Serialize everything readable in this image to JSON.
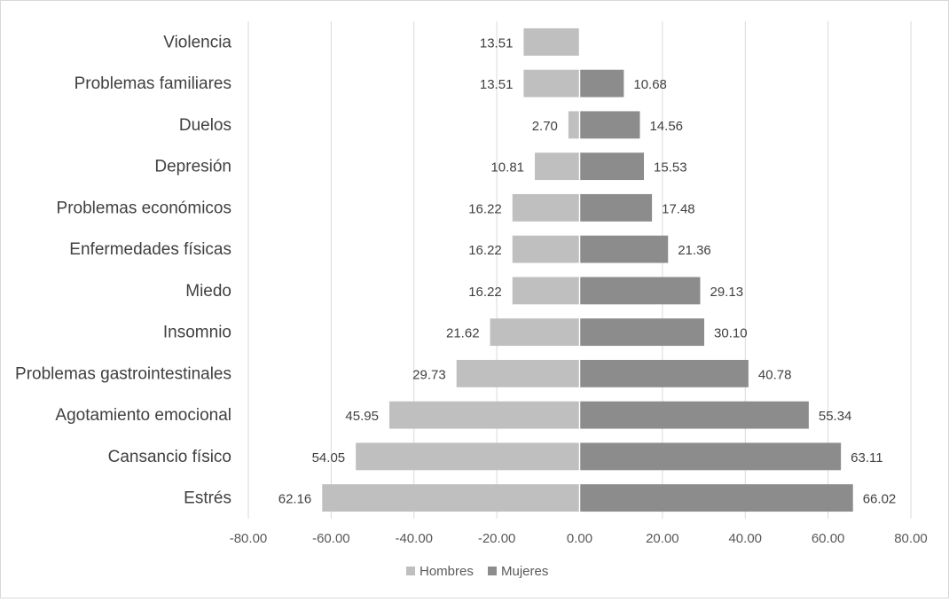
{
  "chart_data": {
    "type": "bar",
    "orientation": "horizontal",
    "categories": [
      "Violencia",
      "Problemas familiares",
      "Duelos",
      "Depresión",
      "Problemas económicos",
      "Enfermedades físicas",
      "Miedo",
      "Insomnio",
      "Problemas gastrointestinales",
      "Agotamiento emocional",
      "Cansancio físico",
      "Estrés"
    ],
    "series": [
      {
        "name": "Hombres",
        "color": "#bfbfbf",
        "values": [
          -13.51,
          -13.51,
          -2.7,
          -10.81,
          -16.22,
          -16.22,
          -16.22,
          -21.62,
          -29.73,
          -45.95,
          -54.05,
          -62.16
        ],
        "labels": [
          "13.51",
          "13.51",
          "2.70",
          "10.81",
          "16.22",
          "16.22",
          "16.22",
          "21.62",
          "29.73",
          "45.95",
          "54.05",
          "62.16"
        ]
      },
      {
        "name": "Mujeres",
        "color": "#8c8c8c",
        "values": [
          null,
          10.68,
          14.56,
          15.53,
          17.48,
          21.36,
          29.13,
          30.1,
          40.78,
          55.34,
          63.11,
          66.02
        ],
        "labels": [
          "",
          "10.68",
          "14.56",
          "15.53",
          "17.48",
          "21.36",
          "29.13",
          "30.10",
          "40.78",
          "55.34",
          "63.11",
          "66.02"
        ]
      }
    ],
    "xlim": [
      -80,
      80
    ],
    "xticks": [
      -80,
      -60,
      -40,
      -20,
      0,
      20,
      40,
      60,
      80
    ],
    "xtick_labels": [
      "-80.00",
      "-60.00",
      "-40.00",
      "-20.00",
      "0.00",
      "20.00",
      "40.00",
      "60.00",
      "80.00"
    ],
    "title": "",
    "xlabel": "",
    "ylabel": "",
    "grid": true,
    "legend_position": "bottom-center"
  }
}
